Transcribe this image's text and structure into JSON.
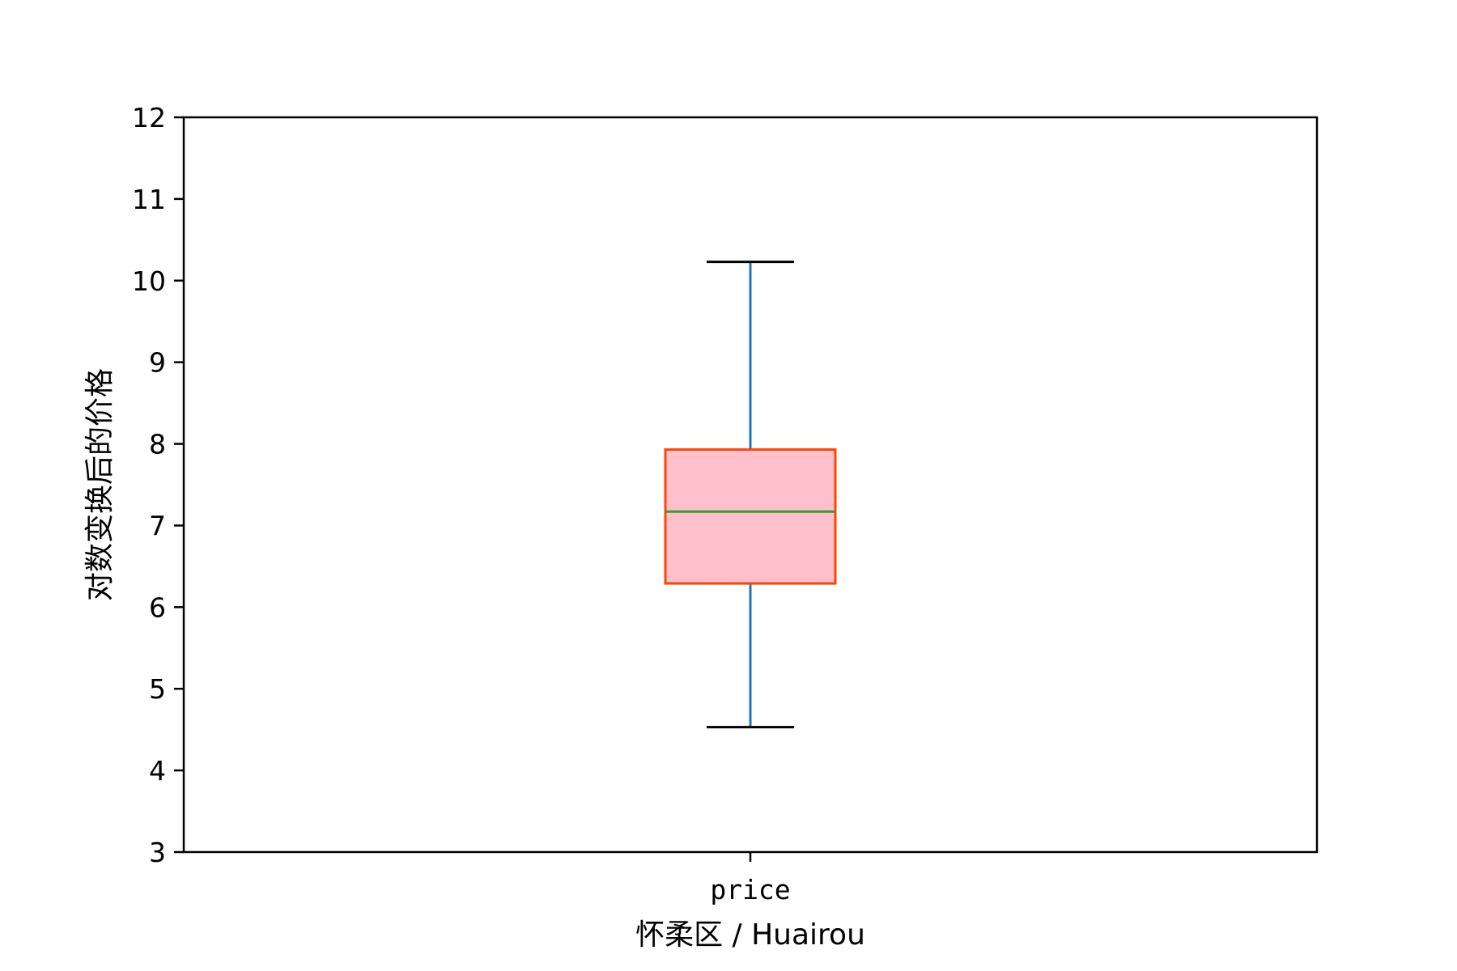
{
  "chart_data": {
    "type": "box",
    "xlabel": "怀柔区 / Huairou",
    "ylabel": "对数变换后的价格",
    "ylim": [
      3,
      12
    ],
    "yticks": [
      3,
      4,
      5,
      6,
      7,
      8,
      9,
      10,
      11,
      12
    ],
    "grid": false,
    "categories": [
      "price"
    ],
    "boxes": [
      {
        "label": "price",
        "whisker_low": 4.53,
        "q1": 6.29,
        "median": 7.17,
        "q3": 7.93,
        "whisker_high": 10.23
      }
    ],
    "colors": {
      "box_fill": "#FFC0CB",
      "box_edge": "#FF4500",
      "median": "#2CA02C",
      "whisker": "#1F77B4",
      "cap": "#000000",
      "axes": "#000000"
    }
  }
}
